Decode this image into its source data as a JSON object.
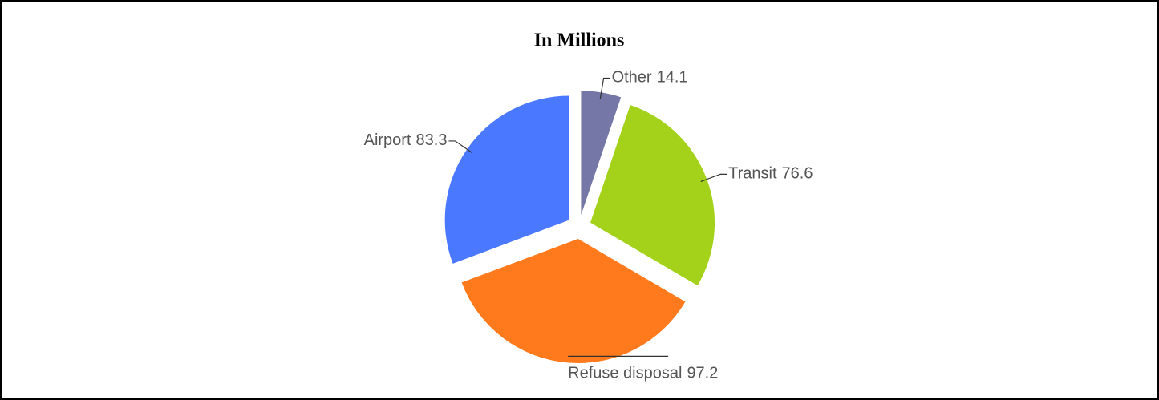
{
  "chart_data": {
    "type": "pie",
    "title": "In Millions",
    "categories": [
      "Other",
      "Transit",
      "Refuse disposal",
      "Airport"
    ],
    "values": [
      14.1,
      76.6,
      97.2,
      83.3
    ],
    "colors": [
      "#7577a6",
      "#a4d11a",
      "#ff7a1c",
      "#4a78ff"
    ]
  }
}
